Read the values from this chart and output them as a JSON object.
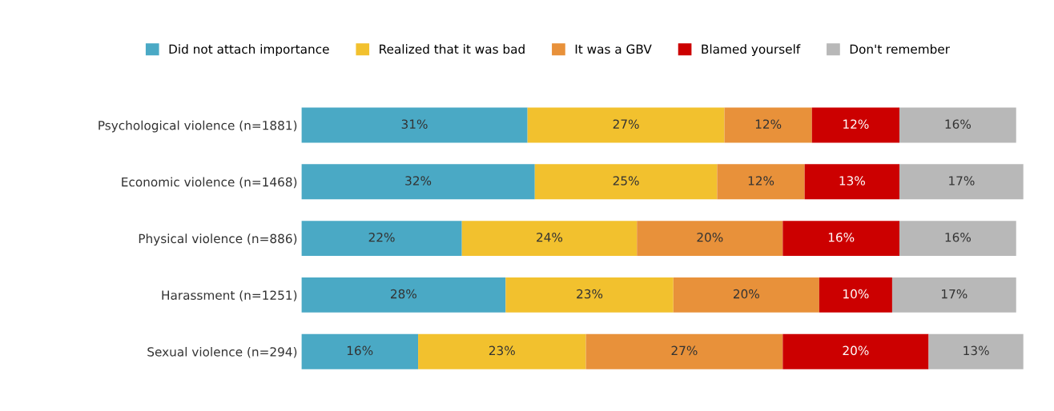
{
  "chart_data": {
    "type": "bar",
    "orientation": "horizontal",
    "stacked": true,
    "legend": "top",
    "grid": false,
    "categories": [
      "Psychological violence (n=1881)",
      "Economic violence (n=1468)",
      "Physical violence (n=886)",
      "Harassment (n=1251)",
      "Sexual violence (n=294)"
    ],
    "series": [
      {
        "name": "Did not attach importance",
        "color": "#4aa9c5",
        "values": [
          31,
          32,
          22,
          28,
          16
        ],
        "value_labels": [
          "31%",
          "32%",
          "22%",
          "28%",
          "16%"
        ]
      },
      {
        "name": "Realized that it was bad",
        "color": "#f2c12e",
        "values": [
          27,
          25,
          24,
          23,
          23
        ],
        "value_labels": [
          "27%",
          "25%",
          "24%",
          "23%",
          "23%"
        ]
      },
      {
        "name": "It was a GBV",
        "color": "#e8913a",
        "values": [
          12,
          12,
          20,
          20,
          27
        ],
        "value_labels": [
          "12%",
          "12%",
          "20%",
          "20%",
          "27%"
        ]
      },
      {
        "name": "Blamed yourself",
        "color": "#cc0000",
        "values": [
          12,
          13,
          16,
          10,
          20
        ],
        "value_labels": [
          "12%",
          "13%",
          "16%",
          "10%",
          "20%"
        ]
      },
      {
        "name": "Don't remember",
        "color": "#b8b8b8",
        "values": [
          16,
          17,
          16,
          17,
          13
        ],
        "value_labels": [
          "16%",
          "17%",
          "16%",
          "17%",
          "13%"
        ]
      }
    ]
  }
}
